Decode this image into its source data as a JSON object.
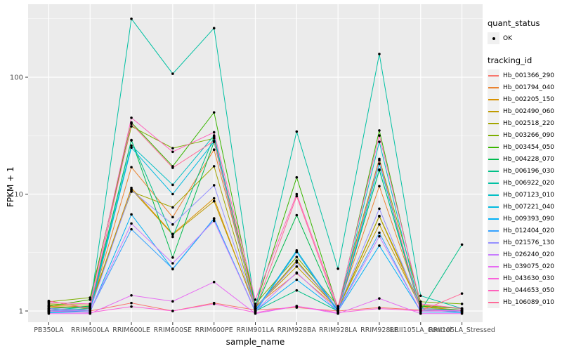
{
  "chart_data": {
    "type": "line",
    "title": "",
    "xlabel": "sample_name",
    "ylabel": "FPKM + 1",
    "y_scale": "log10",
    "y_ticks": [
      1,
      10,
      100
    ],
    "y_minor_ticks": [
      3.162,
      31.62,
      316.2
    ],
    "ylim": [
      0.85,
      420
    ],
    "grid": true,
    "legend_position": "right",
    "panel_color": "#EBEBEB",
    "grid_color": "#FFFFFF",
    "tick_label_color": "#4D4D4D",
    "point_color": "#000000",
    "categories": [
      "PB350LA",
      "RRIM600LA",
      "RRIM600LE",
      "RRIM600SE",
      "RRIM600PE",
      "RRIM901LA",
      "RRIM928BA",
      "RRIM928LA",
      "RRIM928LE",
      "RRII105LA_Control",
      "RRII105LA_Stressed"
    ],
    "series": [
      {
        "name": "Hb_001366_290",
        "color": "#F8766D",
        "values": [
          1.05,
          1.0,
          1.17,
          1.0,
          1.17,
          1.02,
          1.07,
          1.0,
          1.07,
          1.02,
          1.02
        ]
      },
      {
        "name": "Hb_001794_040",
        "color": "#EA8331",
        "values": [
          1.1,
          1.05,
          17.0,
          6.35,
          24.0,
          1.1,
          2.1,
          1.05,
          11.7,
          1.1,
          1.0
        ]
      },
      {
        "name": "Hb_002205_150",
        "color": "#D89000",
        "values": [
          1.12,
          1.08,
          11.3,
          4.56,
          9.2,
          1.05,
          2.68,
          1.02,
          6.45,
          1.05,
          1.0
        ]
      },
      {
        "name": "Hb_002490_060",
        "color": "#C09B00",
        "values": [
          1.08,
          1.06,
          11.0,
          4.5,
          8.7,
          1.08,
          2.4,
          1.05,
          5.5,
          1.08,
          1.02
        ]
      },
      {
        "name": "Hb_002518_220",
        "color": "#A3A500",
        "values": [
          1.15,
          1.12,
          10.5,
          7.7,
          17.3,
          1.06,
          2.7,
          1.04,
          6.5,
          1.12,
          1.05
        ]
      },
      {
        "name": "Hb_003266_090",
        "color": "#7CAE00",
        "values": [
          1.2,
          1.3,
          38.0,
          24.7,
          30.0,
          1.15,
          2.9,
          1.1,
          20.0,
          1.2,
          1.15
        ]
      },
      {
        "name": "Hb_003454_050",
        "color": "#39B600",
        "values": [
          1.1,
          1.25,
          41.0,
          17.3,
          50.0,
          1.1,
          13.9,
          1.05,
          35.0,
          1.1,
          1.05
        ]
      },
      {
        "name": "Hb_004228_070",
        "color": "#00BB4E",
        "values": [
          1.05,
          1.1,
          29.0,
          2.87,
          28.0,
          1.05,
          6.6,
          1.02,
          16.0,
          1.05,
          1.02
        ]
      },
      {
        "name": "Hb_006196_030",
        "color": "#00C087",
        "values": [
          1.0,
          1.05,
          28.8,
          4.3,
          31.0,
          1.0,
          1.5,
          1.0,
          16.2,
          1.0,
          3.7
        ]
      },
      {
        "name": "Hb_006922_020",
        "color": "#00C1A3",
        "values": [
          1.02,
          1.08,
          316.0,
          107.0,
          263.0,
          1.05,
          34.3,
          2.3,
          158.0,
          1.35,
          1.05
        ]
      },
      {
        "name": "Hb_007123_010",
        "color": "#00BFC4",
        "values": [
          1.0,
          1.02,
          26.0,
          12.0,
          31.7,
          1.0,
          3.3,
          1.0,
          28.0,
          1.0,
          1.0
        ]
      },
      {
        "name": "Hb_007221_040",
        "color": "#00BAE0",
        "values": [
          0.98,
          1.0,
          25.0,
          10.0,
          28.1,
          1.02,
          3.2,
          0.98,
          18.2,
          1.02,
          0.98
        ]
      },
      {
        "name": "Hb_009393_090",
        "color": "#00B0F6",
        "values": [
          0.97,
          0.98,
          6.7,
          2.28,
          6.15,
          1.0,
          1.85,
          1.0,
          3.62,
          1.0,
          1.0
        ]
      },
      {
        "name": "Hb_012404_020",
        "color": "#35A2FF",
        "values": [
          1.0,
          1.0,
          5.0,
          2.3,
          6.2,
          0.98,
          3.2,
          1.02,
          4.67,
          0.98,
          0.97
        ]
      },
      {
        "name": "Hb_021576_130",
        "color": "#9590FF",
        "values": [
          1.05,
          1.02,
          10.8,
          5.5,
          11.9,
          1.05,
          2.6,
          1.05,
          7.5,
          1.05,
          1.0
        ]
      },
      {
        "name": "Hb_026240_020",
        "color": "#C77CFF",
        "values": [
          1.02,
          1.0,
          5.6,
          2.56,
          5.9,
          1.0,
          2.13,
          1.0,
          4.35,
          1.0,
          1.02
        ]
      },
      {
        "name": "Hb_039075_020",
        "color": "#E76BF3",
        "values": [
          0.95,
          0.95,
          1.36,
          1.21,
          1.77,
          0.95,
          1.1,
          0.95,
          1.28,
          0.95,
          0.95
        ]
      },
      {
        "name": "Hb_043630_030",
        "color": "#FA62DB",
        "values": [
          1.0,
          0.97,
          1.09,
          1.0,
          1.15,
          0.97,
          1.1,
          0.97,
          1.05,
          1.0,
          1.0
        ]
      },
      {
        "name": "Hb_044653_050",
        "color": "#FF62BC",
        "values": [
          1.18,
          1.15,
          45.0,
          23.0,
          33.8,
          1.25,
          10.0,
          1.08,
          31.7,
          1.15,
          1.05
        ]
      },
      {
        "name": "Hb_106089_010",
        "color": "#FF6A98",
        "values": [
          1.22,
          1.05,
          40.0,
          16.8,
          28.5,
          1.05,
          9.6,
          1.02,
          19.5,
          1.0,
          1.41
        ]
      }
    ]
  },
  "axes": {
    "x_title": "sample_name",
    "y_title": "FPKM + 1"
  },
  "legend": {
    "quant_status": {
      "title": "quant_status",
      "ok_label": "OK"
    },
    "tracking_id": {
      "title": "tracking_id"
    }
  }
}
